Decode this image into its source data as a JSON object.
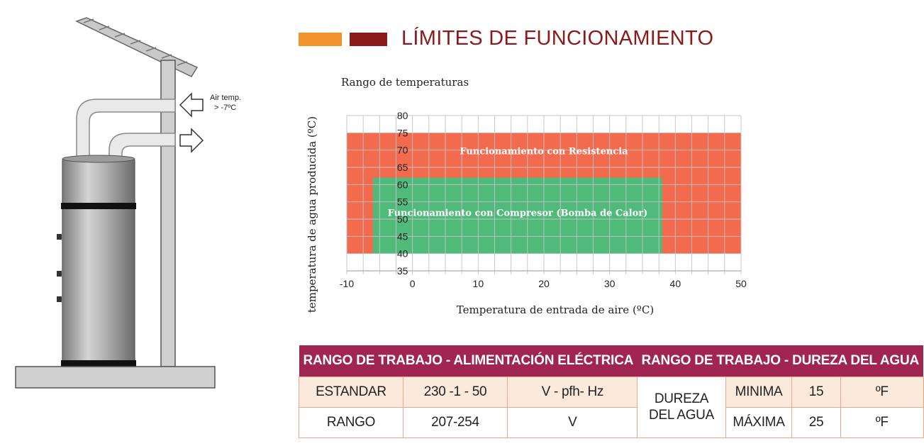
{
  "illustration": {
    "air_temp_label": "Air temp.",
    "air_temp_value": "> -7ºC"
  },
  "header": {
    "title": "LÍMITES DE FUNCIONAMIENTO",
    "accent_colors": [
      "#f2922b",
      "#8b1a1a"
    ]
  },
  "chart_caption": "Rango de temperaturas",
  "chart_data": {
    "type": "area",
    "title": "",
    "xlabel": "Temperatura de entrada de aire (ºC)",
    "ylabel": "temperatura de agua producida (ºC)",
    "xlim": [
      -10,
      50
    ],
    "ylim": [
      35,
      80
    ],
    "xticks": [
      -10,
      0,
      10,
      20,
      30,
      40,
      50
    ],
    "yticks": [
      35,
      40,
      45,
      50,
      55,
      60,
      65,
      70,
      75,
      80
    ],
    "grid": true,
    "regions": [
      {
        "name": "Funcionamiento con Resistencia",
        "x": [
          -10,
          50
        ],
        "y": [
          40,
          75
        ],
        "color": "#f26b4e"
      },
      {
        "name": "Funcionamiento con Compresor (Bomba de Calor)",
        "x": [
          -6,
          38
        ],
        "y": [
          40,
          62
        ],
        "color": "#4fba79"
      }
    ]
  },
  "power_table": {
    "header": "RANGO DE TRABAJO - ALIMENTACIÓN ELÉCTRICA",
    "rows": [
      [
        "ESTANDAR",
        "230 -1 - 50",
        "V - pfh- Hz"
      ],
      [
        "RANGO",
        "207-254",
        "V"
      ]
    ]
  },
  "hardness_table": {
    "header": "RANGO DE TRABAJO - DUREZA DEL AGUA",
    "label": "DUREZA DEL AGUA",
    "rows": [
      [
        "MINIMA",
        "15",
        "ºF"
      ],
      [
        "MÁXIMA",
        "25",
        "ºF"
      ]
    ]
  }
}
